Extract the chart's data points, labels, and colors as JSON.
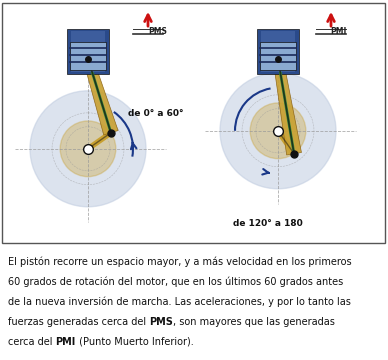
{
  "bg_color": "#ffffff",
  "label_left": "de 0° a 60°",
  "label_right": "de 120° a 180",
  "label_pms": "PMS",
  "label_pmi": "PMI",
  "arrow_red": "#cc1111",
  "arc_blue": "#1a3888",
  "piston_dark": "#2a4a8a",
  "piston_mid": "#4a6aaa",
  "piston_light": "#8aaad0",
  "rod_gold": "#c8a030",
  "rod_green": "#3a8a3a",
  "crank_gold": "#c8a030",
  "circle_fill": "#c0cce0",
  "circle_inner": "#d8e4f0",
  "dashed_col": "#999999",
  "black": "#111111",
  "caption": "El pistón recorre un espacio mayor, y a más velocidad en los primeros 60 grados de rotación del motor, que en los últimos 60 grados antes de la nueva inversión de marcha. Las aceleraciones, y por lo tanto las fuerzas generadas cerca del PMS, son mayores que las generadas cerca del PMI (Punto Muerto Inferior).",
  "caption_lines": [
    "El pistón recorre un espacio mayor, y a más velocidad en los primeros",
    "60 grados de rotación del motor, que en los últimos 60 grados antes",
    "de la nueva inversión de marcha. Las aceleraciones, y por lo tanto las",
    "fuerzas generadas cerca del PMS, son mayores que las generadas",
    "cerca del PMI (Punto Muerto Inferior)."
  ]
}
